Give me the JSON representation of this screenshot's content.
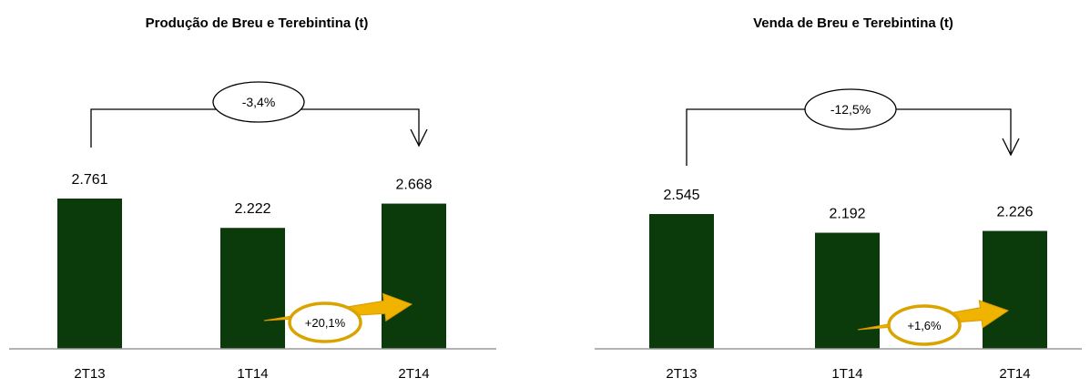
{
  "chart_data": [
    {
      "type": "bar",
      "title": "Produção de Breu e Terebintina (t)",
      "categories": [
        "2T13",
        "1T14",
        "2T14"
      ],
      "values": [
        2761,
        2222,
        2668
      ],
      "value_labels": [
        "2.761",
        "2.222",
        "2.668"
      ],
      "comparison_label": "-3,4%",
      "growth_label": "+20,1%",
      "bar_color": "#0b3a0b",
      "accent_color": "#f0b400"
    },
    {
      "type": "bar",
      "title": "Venda de Breu e Terebintina (t)",
      "categories": [
        "2T13",
        "1T14",
        "2T14"
      ],
      "values": [
        2545,
        2192,
        2226
      ],
      "value_labels": [
        "2.545",
        "2.192",
        "2.226"
      ],
      "comparison_label": "-12,5%",
      "growth_label": "+1,6%",
      "bar_color": "#0b3a0b",
      "accent_color": "#f0b400"
    }
  ]
}
